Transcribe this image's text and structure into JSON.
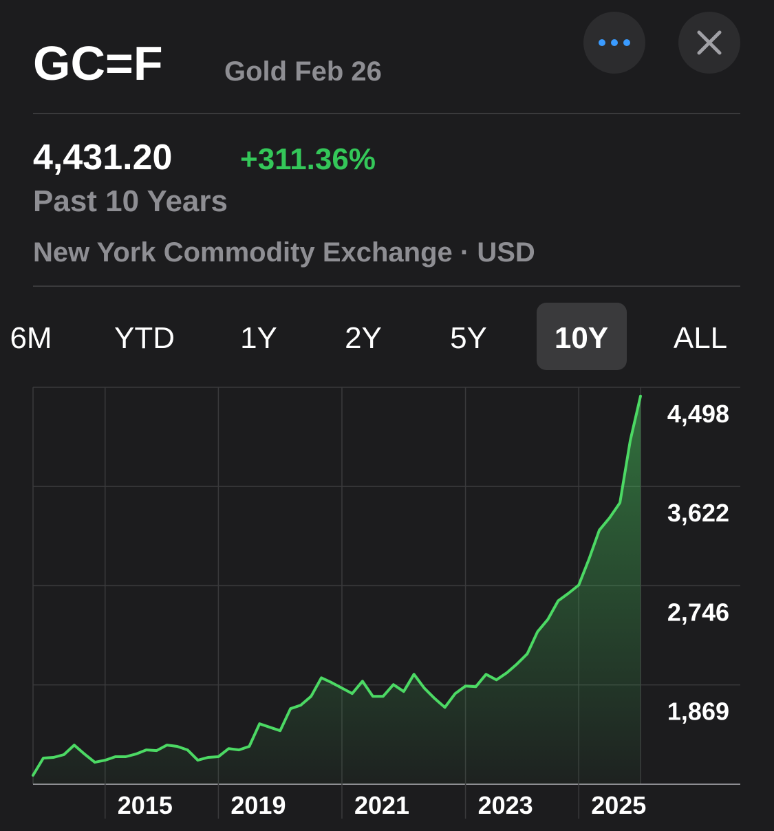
{
  "header": {
    "symbol": "GC=F",
    "name": "Gold Feb 26",
    "price": "4,431.20",
    "change": "+311.36%",
    "period": "Past 10 Years",
    "exchange": "New York Commodity Exchange · USD"
  },
  "ranges": [
    "6M",
    "YTD",
    "1Y",
    "2Y",
    "5Y",
    "10Y",
    "ALL"
  ],
  "selected_range": 5,
  "chart_data": {
    "type": "line",
    "categories": [
      null,
      null,
      null,
      null,
      null,
      null,
      null,
      "2015",
      null,
      null,
      null,
      null,
      null,
      null,
      null,
      null,
      null,
      null,
      "2019",
      null,
      null,
      null,
      null,
      null,
      null,
      null,
      null,
      null,
      null,
      null,
      "2021",
      null,
      null,
      null,
      null,
      null,
      null,
      null,
      null,
      null,
      null,
      null,
      "2023",
      null,
      null,
      null,
      null,
      null,
      null,
      null,
      null,
      null,
      null,
      "2025",
      null,
      null,
      null,
      null,
      null,
      null
    ],
    "values": [
      1071,
      1223,
      1229,
      1253,
      1338,
      1259,
      1186,
      1204,
      1235,
      1235,
      1259,
      1295,
      1289,
      1338,
      1326,
      1295,
      1204,
      1229,
      1235,
      1307,
      1295,
      1326,
      1526,
      1495,
      1465,
      1659,
      1690,
      1768,
      1932,
      1890,
      1841,
      1793,
      1902,
      1768,
      1768,
      1872,
      1811,
      1963,
      1841,
      1750,
      1671,
      1793,
      1859,
      1853,
      1963,
      1914,
      1975,
      2054,
      2144,
      2339,
      2448,
      2612,
      2678,
      2751,
      2982,
      3236,
      3346,
      3479,
      4025,
      4420
    ],
    "color": "#4cd964",
    "ylim": [
      992,
      4498
    ],
    "yticks": [
      {
        "value": 1869,
        "label": "1,869"
      },
      {
        "value": 2746,
        "label": "2,746"
      },
      {
        "value": 3622,
        "label": "3,622"
      },
      {
        "value": 4498,
        "label": "4,498"
      }
    ],
    "grid": true
  }
}
